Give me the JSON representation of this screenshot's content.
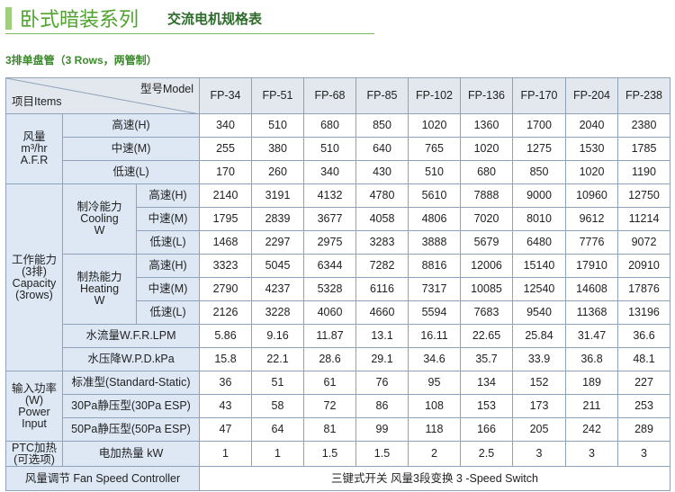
{
  "header": {
    "title": "卧式暗装系列",
    "subtitle": "交流电机规格表"
  },
  "section_title": "3排单盘管（3 Rows，两管制）",
  "table": {
    "corner_top": "型号Model",
    "corner_bottom": "项目Items",
    "models": [
      "FP-34",
      "FP-51",
      "FP-68",
      "FP-85",
      "FP-102",
      "FP-136",
      "FP-170",
      "FP-204",
      "FP-238"
    ],
    "groups": [
      {
        "label_lines": [
          "风量",
          "m³/hr",
          "A.F.R"
        ],
        "subgroups": [],
        "rows": [
          {
            "label": "高速(H)",
            "values": [
              340,
              510,
              680,
              850,
              1020,
              1360,
              1700,
              2040,
              2380
            ]
          },
          {
            "label": "中速(M)",
            "values": [
              255,
              380,
              510,
              640,
              765,
              1020,
              1275,
              1530,
              1785
            ]
          },
          {
            "label": "低速(L)",
            "values": [
              170,
              260,
              340,
              430,
              510,
              680,
              850,
              1020,
              1190
            ]
          }
        ]
      },
      {
        "label_lines": [
          "工作能力",
          "(3排)",
          "Capacity",
          "(3rows)"
        ],
        "subgroups": [
          {
            "label_lines": [
              "制冷能力",
              "Cooling",
              "W"
            ],
            "rows": [
              {
                "label": "高速(H)",
                "values": [
                  2140,
                  3191,
                  4132,
                  4780,
                  5610,
                  7888,
                  9000,
                  10960,
                  12750
                ]
              },
              {
                "label": "中速(M)",
                "values": [
                  1795,
                  2839,
                  3677,
                  4058,
                  4806,
                  7020,
                  8010,
                  9612,
                  11214
                ]
              },
              {
                "label": "低速(L)",
                "values": [
                  1468,
                  2297,
                  2975,
                  3283,
                  3888,
                  5679,
                  6480,
                  7776,
                  9072
                ]
              }
            ]
          },
          {
            "label_lines": [
              "制热能力",
              "Heating",
              "W"
            ],
            "rows": [
              {
                "label": "高速(H)",
                "values": [
                  3323,
                  5045,
                  6344,
                  7282,
                  8816,
                  12006,
                  15140,
                  17910,
                  20910
                ]
              },
              {
                "label": "中速(M)",
                "values": [
                  2790,
                  4237,
                  5328,
                  6116,
                  7317,
                  10085,
                  12540,
                  14608,
                  17876
                ]
              },
              {
                "label": "低速(L)",
                "values": [
                  2126,
                  3228,
                  4060,
                  4660,
                  5594,
                  7683,
                  9540,
                  11368,
                  13196
                ]
              }
            ]
          }
        ],
        "rows": [
          {
            "label": "水流量W.F.R.LPM",
            "values": [
              5.86,
              9.16,
              11.87,
              13.1,
              16.11,
              22.65,
              25.84,
              31.47,
              36.6
            ]
          },
          {
            "label": "水压降W.P.D.kPa",
            "values": [
              15.8,
              22.1,
              28.6,
              29.1,
              34.6,
              35.7,
              33.9,
              36.8,
              48.1
            ]
          }
        ]
      },
      {
        "label_lines": [
          "输入功率",
          "(W)",
          "Power Input"
        ],
        "subgroups": [],
        "rows": [
          {
            "label": "标准型(Standard-Static)",
            "values": [
              36,
              51,
              61,
              76,
              95,
              134,
              152,
              189,
              227
            ]
          },
          {
            "label": "30Pa静压型(30Pa ESP)",
            "values": [
              43,
              58,
              72,
              86,
              108,
              153,
              173,
              211,
              253
            ]
          },
          {
            "label": "50Pa静压型(50Pa ESP)",
            "values": [
              47,
              64,
              81,
              99,
              118,
              166,
              205,
              242,
              289
            ]
          }
        ]
      },
      {
        "label_lines": [
          "PTC加热",
          "(可选项)"
        ],
        "subgroups": [],
        "rows": [
          {
            "label": "电加热量 kW",
            "values": [
              1,
              1,
              1.5,
              1.5,
              2,
              2.5,
              3,
              3,
              3
            ]
          }
        ]
      }
    ],
    "footer": {
      "label": "风量调节  Fan Speed Controller",
      "value": "三键式开关  风量3段变换 3 -Speed Switch"
    }
  }
}
